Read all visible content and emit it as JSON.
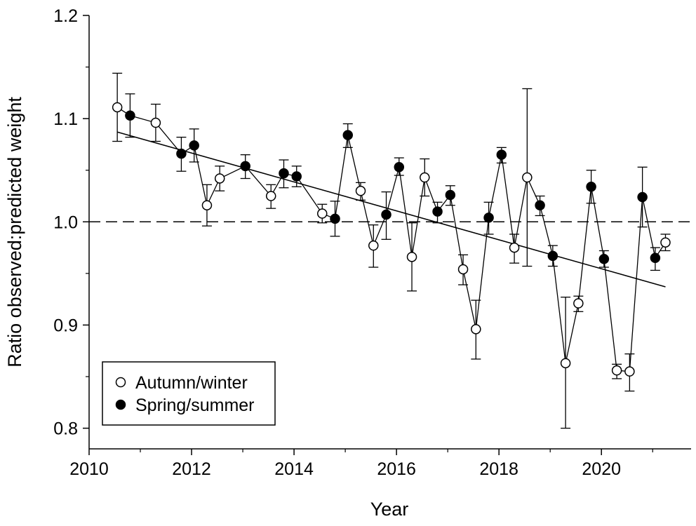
{
  "chart_data": {
    "type": "scatter",
    "xlabel": "Year",
    "ylabel": "Ratio observed:predicted weight",
    "xlim": [
      2010,
      2021.75
    ],
    "ylim": [
      0.78,
      1.2
    ],
    "xticks": [
      2010,
      2012,
      2014,
      2016,
      2018,
      2020
    ],
    "xtick_labels": [
      "2010",
      "2012",
      "2014",
      "2016",
      "2018",
      "2020"
    ],
    "yticks": [
      0.8,
      0.9,
      1.0,
      1.1,
      1.2
    ],
    "ytick_labels": [
      "0.8",
      "0.9",
      "1.0",
      "1.1",
      "1.2"
    ],
    "reference_line": {
      "y": 1.0,
      "style": "dashed"
    },
    "trend_line": {
      "x": [
        2010.55,
        2021.25
      ],
      "y": [
        1.087,
        0.937
      ]
    },
    "legend": {
      "position": "bottom-left",
      "entries": [
        {
          "label": "Autumn/winter",
          "marker": "open-circle"
        },
        {
          "label": "Spring/summer",
          "marker": "filled-circle"
        }
      ]
    },
    "series": [
      {
        "name": "Autumn/winter",
        "marker": "open",
        "points": [
          {
            "x": 2010.55,
            "y": 1.111,
            "lo": 1.078,
            "hi": 1.144
          },
          {
            "x": 2011.3,
            "y": 1.096,
            "lo": 1.078,
            "hi": 1.114
          },
          {
            "x": 2012.3,
            "y": 1.016,
            "lo": 0.996,
            "hi": 1.036
          },
          {
            "x": 2012.55,
            "y": 1.042,
            "lo": 1.03,
            "hi": 1.054
          },
          {
            "x": 2013.55,
            "y": 1.025,
            "lo": 1.013,
            "hi": 1.036
          },
          {
            "x": 2014.55,
            "y": 1.008,
            "lo": 0.999,
            "hi": 1.017
          },
          {
            "x": 2015.3,
            "y": 1.03,
            "lo": 1.021,
            "hi": 1.038
          },
          {
            "x": 2015.55,
            "y": 0.977,
            "lo": 0.956,
            "hi": 0.997
          },
          {
            "x": 2016.3,
            "y": 0.966,
            "lo": 0.933,
            "hi": 0.999
          },
          {
            "x": 2016.55,
            "y": 1.043,
            "lo": 1.025,
            "hi": 1.061
          },
          {
            "x": 2017.3,
            "y": 0.954,
            "lo": 0.939,
            "hi": 0.968
          },
          {
            "x": 2017.55,
            "y": 0.896,
            "lo": 0.867,
            "hi": 0.924
          },
          {
            "x": 2018.3,
            "y": 0.975,
            "lo": 0.96,
            "hi": 0.988
          },
          {
            "x": 2018.55,
            "y": 1.043,
            "lo": 0.957,
            "hi": 1.129
          },
          {
            "x": 2019.3,
            "y": 0.863,
            "lo": 0.8,
            "hi": 0.927
          },
          {
            "x": 2019.55,
            "y": 0.921,
            "lo": 0.913,
            "hi": 0.928
          },
          {
            "x": 2020.3,
            "y": 0.856,
            "lo": 0.848,
            "hi": 0.862
          },
          {
            "x": 2020.55,
            "y": 0.855,
            "lo": 0.836,
            "hi": 0.872
          },
          {
            "x": 2021.25,
            "y": 0.98,
            "lo": 0.972,
            "hi": 0.988
          }
        ]
      },
      {
        "name": "Spring/summer",
        "marker": "filled",
        "points": [
          {
            "x": 2010.8,
            "y": 1.103,
            "lo": 1.082,
            "hi": 1.124
          },
          {
            "x": 2011.8,
            "y": 1.066,
            "lo": 1.049,
            "hi": 1.082
          },
          {
            "x": 2012.05,
            "y": 1.074,
            "lo": 1.058,
            "hi": 1.09
          },
          {
            "x": 2013.05,
            "y": 1.054,
            "lo": 1.042,
            "hi": 1.065
          },
          {
            "x": 2013.8,
            "y": 1.047,
            "lo": 1.033,
            "hi": 1.06
          },
          {
            "x": 2014.05,
            "y": 1.044,
            "lo": 1.034,
            "hi": 1.054
          },
          {
            "x": 2014.8,
            "y": 1.003,
            "lo": 0.986,
            "hi": 1.02
          },
          {
            "x": 2015.05,
            "y": 1.084,
            "lo": 1.072,
            "hi": 1.095
          },
          {
            "x": 2015.8,
            "y": 1.007,
            "lo": 0.983,
            "hi": 1.029
          },
          {
            "x": 2016.05,
            "y": 1.053,
            "lo": 1.045,
            "hi": 1.062
          },
          {
            "x": 2016.8,
            "y": 1.01,
            "lo": 0.999,
            "hi": 1.019
          },
          {
            "x": 2017.05,
            "y": 1.026,
            "lo": 1.016,
            "hi": 1.035
          },
          {
            "x": 2017.8,
            "y": 1.004,
            "lo": 0.988,
            "hi": 1.019
          },
          {
            "x": 2018.05,
            "y": 1.065,
            "lo": 1.057,
            "hi": 1.072
          },
          {
            "x": 2018.8,
            "y": 1.016,
            "lo": 1.006,
            "hi": 1.025
          },
          {
            "x": 2019.05,
            "y": 0.967,
            "lo": 0.957,
            "hi": 0.977
          },
          {
            "x": 2019.8,
            "y": 1.034,
            "lo": 1.018,
            "hi": 1.05
          },
          {
            "x": 2020.05,
            "y": 0.964,
            "lo": 0.956,
            "hi": 0.972
          },
          {
            "x": 2020.8,
            "y": 1.024,
            "lo": 0.995,
            "hi": 1.053
          },
          {
            "x": 2021.05,
            "y": 0.965,
            "lo": 0.953,
            "hi": 0.975
          }
        ]
      }
    ]
  }
}
